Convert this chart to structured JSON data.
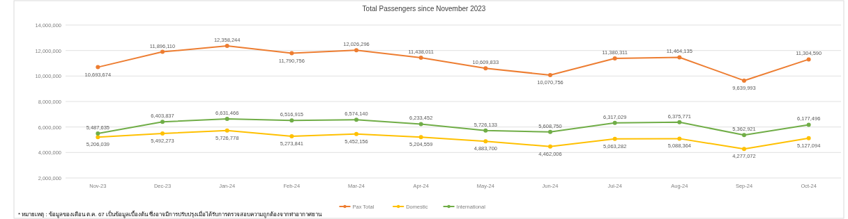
{
  "chart_data": {
    "type": "line",
    "title": "Total Passengers since November 2023",
    "categories": [
      "Nov-23",
      "Dec-23",
      "Jan-24",
      "Feb-24",
      "Mar-24",
      "Apr-24",
      "May-24",
      "Jun-24",
      "Jul-24",
      "Aug-24",
      "Sep-24",
      "Oct-24"
    ],
    "series": [
      {
        "name": "Pax Total",
        "color": "#ed7d31",
        "values": [
          10693674,
          11896110,
          12358244,
          11790756,
          12026296,
          11438011,
          10609833,
          10070756,
          11380311,
          11464135,
          9639993,
          11304590
        ],
        "value_labels": [
          "10,693,674",
          "11,896,110",
          "12,358,244",
          "11,790,756",
          "12,026,296",
          "11,438,011",
          "10,609,833",
          "10,070,756",
          "11,380,311",
          "11,464,135",
          "9,639,993",
          "11,304,590"
        ]
      },
      {
        "name": "Domestic",
        "color": "#ffc000",
        "values": [
          5206039,
          5492273,
          5726778,
          5273841,
          5452156,
          5204559,
          4883700,
          4462006,
          5063282,
          5088364,
          4277072,
          5127094
        ],
        "value_labels": [
          "5,206,039",
          "5,492,273",
          "5,726,778",
          "5,273,841",
          "5,452,156",
          "5,204,559",
          "4,883,700",
          "4,462,006",
          "5,063,282",
          "5,088,364",
          "4,277,072",
          "5,127,094"
        ]
      },
      {
        "name": "International",
        "color": "#70ad47",
        "values": [
          5487635,
          6403837,
          6631466,
          6516915,
          6574140,
          6233452,
          5726133,
          5608750,
          6317029,
          6375771,
          5362921,
          6177496
        ],
        "value_labels": [
          "5,487,635",
          "6,403,837",
          "6,631,466",
          "6,516,915",
          "6,574,140",
          "6,233,452",
          "5,726,133",
          "5,608,750",
          "6,317,029",
          "6,375,771",
          "5,362,921",
          "6,177,496"
        ]
      }
    ],
    "ylim": [
      2000000,
      14000000
    ],
    "yticks": [
      {
        "value": 2000000,
        "label": "2,000,000"
      },
      {
        "value": 4000000,
        "label": "4,000,000"
      },
      {
        "value": 6000000,
        "label": "6,000,000"
      },
      {
        "value": 8000000,
        "label": "8,000,000"
      },
      {
        "value": 10000000,
        "label": "10,000,000"
      },
      {
        "value": 12000000,
        "label": "12,000,000"
      },
      {
        "value": 14000000,
        "label": "14,000,000"
      }
    ],
    "grid": "y",
    "legend": "bottom",
    "marker": "circle",
    "line_style": "solid",
    "annotations": [
      "* หมายเหตุ : ข้อมูลของเดือน ต.ค. 67 เป็นข้อมูลเบื้องต้น ซึ่งอาจมีการปรับปรุงเมื่อได้รับการตรวจสอบความถูกต้องจากท่าอากาศยาน"
    ]
  }
}
